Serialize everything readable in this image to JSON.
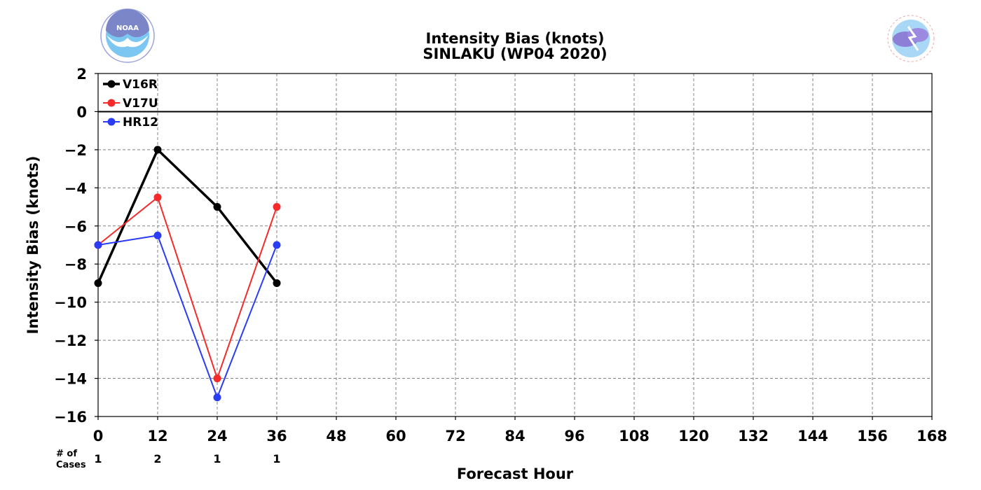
{
  "chart_data": {
    "type": "line",
    "title": "Intensity Bias (knots)",
    "subtitle": "SINLAKU (WP04 2020)",
    "xlabel": "Forecast Hour",
    "ylabel": "Intensity Bias (knots)",
    "xlim": [
      0,
      168
    ],
    "ylim": [
      -16,
      2
    ],
    "x_ticks": [
      0,
      12,
      24,
      36,
      48,
      60,
      72,
      84,
      96,
      108,
      120,
      132,
      144,
      156,
      168
    ],
    "y_ticks": [
      2,
      0,
      -2,
      -4,
      -6,
      -8,
      -10,
      -12,
      -14,
      -16
    ],
    "y_tick_labels": [
      "2",
      "0",
      "−2",
      "−4",
      "−6",
      "−8",
      "−10",
      "−12",
      "−14",
      "−16"
    ],
    "grid": true,
    "legend": "top-left",
    "series": [
      {
        "name": "V16R",
        "color": "#000000",
        "x": [
          0,
          12,
          24,
          36
        ],
        "values": [
          -9,
          -2,
          -5,
          -9
        ]
      },
      {
        "name": "V17U",
        "color": "#f52a2a",
        "x": [
          0,
          12,
          24,
          36
        ],
        "values": [
          -7,
          -4.5,
          -14,
          -5
        ]
      },
      {
        "name": "HR12",
        "color": "#2a3cf5",
        "x": [
          0,
          12,
          24,
          36
        ],
        "values": [
          -7,
          -6.5,
          -15,
          -7
        ]
      }
    ],
    "cases_header": [
      "# of",
      "Cases"
    ],
    "cases": {
      "x": [
        0,
        12,
        24,
        36
      ],
      "values": [
        "1",
        "2",
        "1",
        "1"
      ]
    }
  },
  "logos": {
    "left": {
      "icon": "noaa-logo-icon",
      "text": "NOAA"
    },
    "right": {
      "icon": "nws-logo-icon",
      "text": "NATIONAL WEATHER SERVICE"
    }
  }
}
